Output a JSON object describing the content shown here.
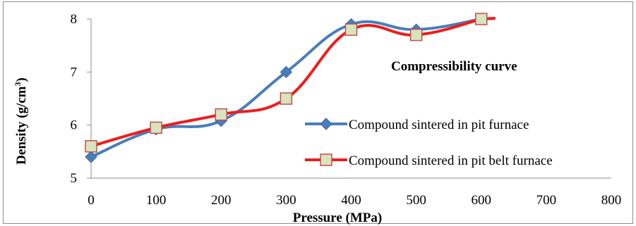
{
  "chart_data": {
    "type": "line",
    "title": "",
    "annotation": "Compressibility curve",
    "xlabel": "Pressure (MPa)",
    "ylabel_main": "Density (g/cm",
    "ylabel_sup": "3",
    "ylabel_close": ")",
    "xlim": [
      0,
      800
    ],
    "ylim": [
      5,
      8
    ],
    "x_ticks": [
      0,
      100,
      200,
      300,
      400,
      500,
      600,
      700,
      800
    ],
    "y_ticks": [
      5,
      6,
      7,
      8
    ],
    "grid": false,
    "legend_position": "right",
    "series": [
      {
        "name": "Compound sintered in pit furnace",
        "color": "#4a7ebb",
        "marker": "diamond",
        "x": [
          0,
          100,
          200,
          300,
          400,
          500,
          600
        ],
        "y": [
          5.4,
          5.92,
          6.08,
          7.0,
          7.9,
          7.8,
          8.0
        ]
      },
      {
        "name": "Compound sintered in pit belt furnace",
        "color": "#ee1c1c",
        "marker": "square",
        "marker_fill": "#d7e4bd",
        "marker_stroke": "#c0504d",
        "x": [
          0,
          100,
          200,
          300,
          400,
          500,
          600
        ],
        "y": [
          5.6,
          5.95,
          6.2,
          6.5,
          7.8,
          7.7,
          8.0
        ]
      }
    ]
  }
}
